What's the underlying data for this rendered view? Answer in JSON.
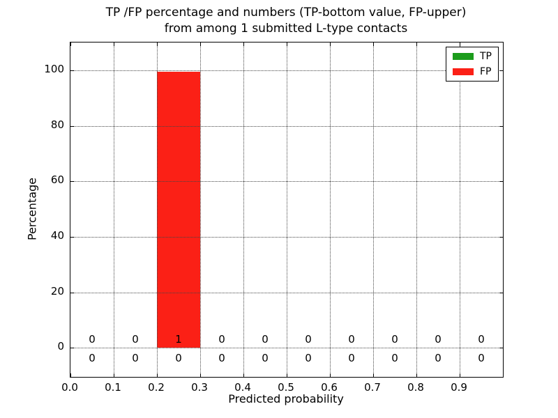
{
  "chart_data": {
    "type": "bar",
    "stacked": true,
    "title_line1": "TP /FP percentage and numbers (TP-bottom value, FP-upper)",
    "title_line2": "from among 1 submitted L-type contacts",
    "xlabel": "Predicted probability",
    "ylabel": "Percentage",
    "xlim": [
      0,
      1
    ],
    "ylim": [
      -10.5,
      110
    ],
    "grid": true,
    "bin_width": 0.1,
    "bin_centers": [
      0.05,
      0.15,
      0.25,
      0.35,
      0.45,
      0.55,
      0.65,
      0.75,
      0.85,
      0.95
    ],
    "xtick_values": [
      0,
      0.1,
      0.2,
      0.3,
      0.4,
      0.5,
      0.6,
      0.7,
      0.8,
      0.9
    ],
    "xtick_labels": [
      "0.0",
      "0.1",
      "0.2",
      "0.3",
      "0.4",
      "0.5",
      "0.6",
      "0.7",
      "0.8",
      "0.9"
    ],
    "ytick_values": [
      0,
      20,
      40,
      60,
      80,
      100
    ],
    "ytick_labels": [
      "0",
      "20",
      "40",
      "60",
      "80",
      "100"
    ],
    "series": [
      {
        "name": "TP",
        "color": "#1c9c1c",
        "values": [
          0,
          0,
          0,
          0,
          0,
          0,
          0,
          0,
          0,
          0
        ]
      },
      {
        "name": "FP",
        "color": "#fb2016",
        "values": [
          0,
          0,
          99.5,
          0,
          0,
          0,
          0,
          0,
          0,
          0
        ]
      }
    ],
    "annotations": {
      "fp_row": [
        "0",
        "0",
        "1",
        "0",
        "0",
        "0",
        "0",
        "0",
        "0",
        "0"
      ],
      "fp_row_y": 3.0,
      "tp_row": [
        "0",
        "0",
        "0",
        "0",
        "0",
        "0",
        "0",
        "0",
        "0",
        "0"
      ],
      "tp_row_y": -3.8
    },
    "legend": {
      "position": "upper right",
      "items": [
        {
          "label": "TP",
          "color": "#1c9c1c"
        },
        {
          "label": "FP",
          "color": "#fb2016"
        }
      ]
    }
  }
}
